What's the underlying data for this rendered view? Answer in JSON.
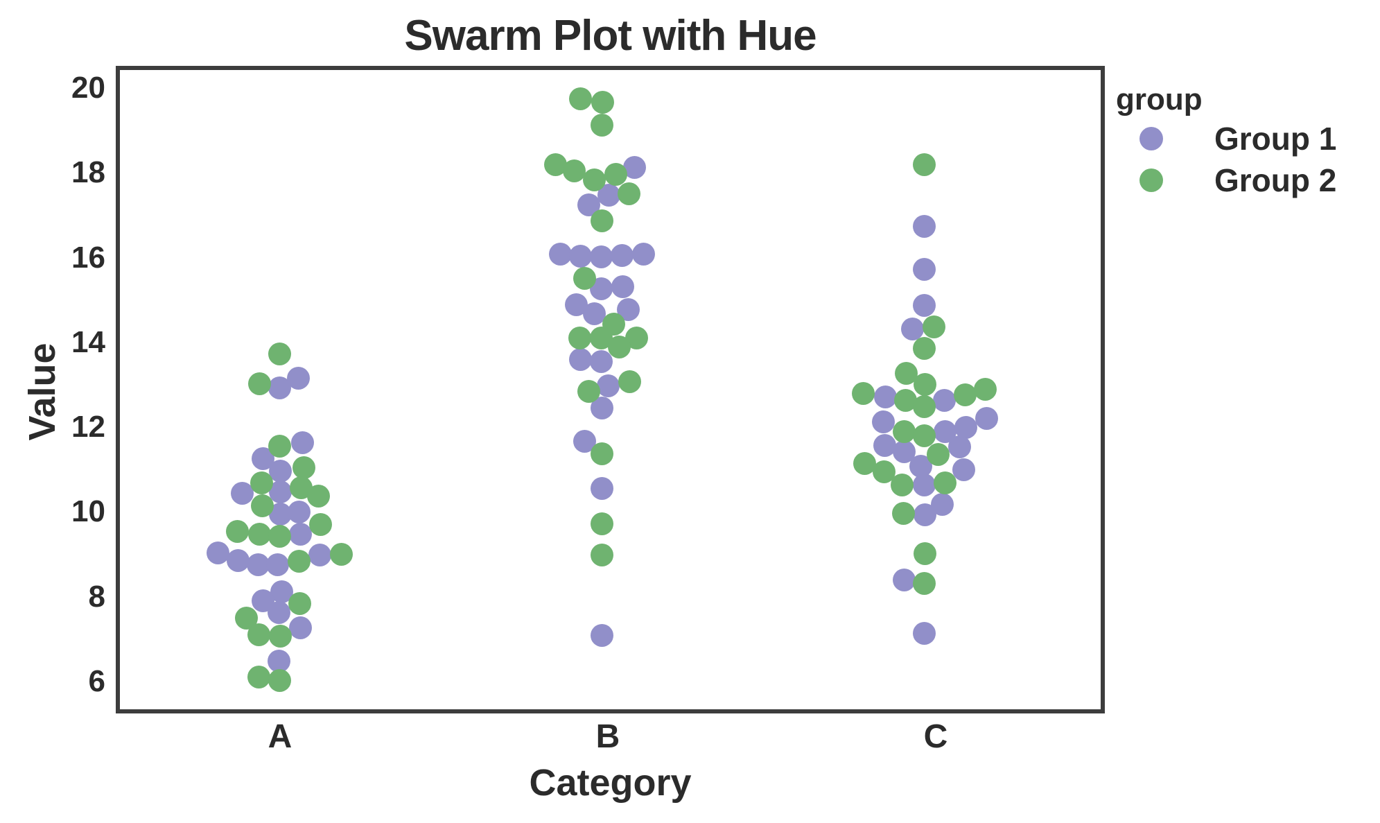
{
  "chart_data": {
    "type": "scatter",
    "variant": "swarmplot",
    "title": "Swarm Plot with Hue",
    "xlabel": "Category",
    "ylabel": "Value",
    "categories": [
      "A",
      "B",
      "C"
    ],
    "y_ticks": [
      6,
      8,
      10,
      12,
      14,
      16,
      18,
      20
    ],
    "ylim": [
      5.3,
      20.5
    ],
    "grid": false,
    "frame_color": "#3d3d3d",
    "text_color": "#2b2b2b",
    "legend": {
      "title": "group",
      "position": "outside-upper-right",
      "entries": [
        {
          "label": "Group 1",
          "color": "#918fc9"
        },
        {
          "label": "Group 2",
          "color": "#6fb370"
        }
      ]
    },
    "point_format": [
      "category",
      "value",
      "swarm_x_offset_px"
    ],
    "series": [
      {
        "name": "Group 1",
        "color": "#918fc9",
        "points": [
          [
            "A",
            12.92,
            -1
          ],
          [
            "A",
            13.15,
            26
          ],
          [
            "A",
            11.63,
            32
          ],
          [
            "A",
            11.26,
            -25
          ],
          [
            "A",
            10.97,
            0
          ],
          [
            "A",
            10.47,
            0
          ],
          [
            "A",
            10.44,
            -55
          ],
          [
            "A",
            9.95,
            0
          ],
          [
            "A",
            10.0,
            27
          ],
          [
            "A",
            9.47,
            29
          ],
          [
            "A",
            9.03,
            -90
          ],
          [
            "A",
            8.86,
            -61
          ],
          [
            "A",
            8.76,
            -32
          ],
          [
            "A",
            8.76,
            -4
          ],
          [
            "A",
            8.99,
            57
          ],
          [
            "A",
            8.12,
            2
          ],
          [
            "A",
            7.91,
            -25
          ],
          [
            "A",
            7.63,
            -2
          ],
          [
            "A",
            7.26,
            29
          ],
          [
            "A",
            6.49,
            -2
          ],
          [
            "B",
            18.13,
            38
          ],
          [
            "B",
            17.47,
            1
          ],
          [
            "B",
            17.25,
            -28
          ],
          [
            "B",
            16.08,
            -69
          ],
          [
            "B",
            16.04,
            -40
          ],
          [
            "B",
            16.02,
            -10
          ],
          [
            "B",
            16.05,
            20
          ],
          [
            "B",
            16.09,
            51
          ],
          [
            "B",
            15.27,
            -10
          ],
          [
            "B",
            15.31,
            21
          ],
          [
            "B",
            14.89,
            -46
          ],
          [
            "B",
            14.67,
            -20
          ],
          [
            "B",
            14.77,
            29
          ],
          [
            "B",
            13.59,
            -40
          ],
          [
            "B",
            13.55,
            -10
          ],
          [
            "B",
            12.97,
            0
          ],
          [
            "B",
            12.46,
            -9
          ],
          [
            "B",
            11.66,
            -34
          ],
          [
            "B",
            10.55,
            -9
          ],
          [
            "B",
            7.08,
            -9
          ],
          [
            "C",
            16.73,
            -17
          ],
          [
            "C",
            15.73,
            -17
          ],
          [
            "C",
            14.87,
            -17
          ],
          [
            "C",
            14.31,
            -34
          ],
          [
            "C",
            12.71,
            -73
          ],
          [
            "C",
            12.63,
            12
          ],
          [
            "C",
            12.13,
            -76
          ],
          [
            "C",
            12.21,
            73
          ],
          [
            "C",
            11.9,
            13
          ],
          [
            "C",
            12.0,
            43
          ],
          [
            "C",
            11.57,
            -74
          ],
          [
            "C",
            11.42,
            -46
          ],
          [
            "C",
            11.53,
            34
          ],
          [
            "C",
            11.08,
            -22
          ],
          [
            "C",
            11.0,
            40
          ],
          [
            "C",
            10.64,
            -17
          ],
          [
            "C",
            10.18,
            9
          ],
          [
            "C",
            9.93,
            -16
          ],
          [
            "C",
            8.39,
            -46
          ],
          [
            "C",
            7.13,
            -17
          ]
        ]
      },
      {
        "name": "Group 2",
        "color": "#6fb370",
        "points": [
          [
            "A",
            13.72,
            -1
          ],
          [
            "A",
            13.03,
            -30
          ],
          [
            "A",
            11.56,
            -1
          ],
          [
            "A",
            11.05,
            34
          ],
          [
            "A",
            10.68,
            -27
          ],
          [
            "A",
            10.57,
            30
          ],
          [
            "A",
            10.38,
            55
          ],
          [
            "A",
            10.14,
            -26
          ],
          [
            "A",
            9.7,
            58
          ],
          [
            "A",
            9.54,
            -62
          ],
          [
            "A",
            9.47,
            -30
          ],
          [
            "A",
            9.43,
            -1
          ],
          [
            "A",
            8.83,
            27
          ],
          [
            "A",
            9.0,
            88
          ],
          [
            "A",
            7.84,
            28
          ],
          [
            "A",
            7.49,
            -49
          ],
          [
            "A",
            7.1,
            -31
          ],
          [
            "A",
            7.07,
            0
          ],
          [
            "A",
            6.11,
            -31
          ],
          [
            "A",
            6.03,
            -1
          ],
          [
            "B",
            19.74,
            -40
          ],
          [
            "B",
            19.66,
            -8
          ],
          [
            "B",
            19.12,
            -9
          ],
          [
            "B",
            18.2,
            -76
          ],
          [
            "B",
            18.05,
            -49
          ],
          [
            "B",
            17.84,
            -20
          ],
          [
            "B",
            17.97,
            11
          ],
          [
            "B",
            17.5,
            30
          ],
          [
            "B",
            16.87,
            -9
          ],
          [
            "B",
            15.51,
            -34
          ],
          [
            "B",
            14.43,
            8
          ],
          [
            "B",
            14.11,
            -41
          ],
          [
            "B",
            14.1,
            -10
          ],
          [
            "B",
            14.11,
            41
          ],
          [
            "B",
            13.89,
            16
          ],
          [
            "B",
            13.08,
            31
          ],
          [
            "B",
            12.85,
            -28
          ],
          [
            "B",
            11.38,
            -9
          ],
          [
            "B",
            9.72,
            -9
          ],
          [
            "B",
            8.99,
            -9
          ],
          [
            "C",
            18.19,
            -17
          ],
          [
            "C",
            14.36,
            -3
          ],
          [
            "C",
            13.86,
            -17
          ],
          [
            "C",
            13.27,
            -43
          ],
          [
            "C",
            13.0,
            -16
          ],
          [
            "C",
            12.79,
            -105
          ],
          [
            "C",
            12.64,
            -44
          ],
          [
            "C",
            12.76,
            42
          ],
          [
            "C",
            12.9,
            71
          ],
          [
            "C",
            12.48,
            -17
          ],
          [
            "C",
            11.9,
            -46
          ],
          [
            "C",
            11.8,
            -17
          ],
          [
            "C",
            11.36,
            3
          ],
          [
            "C",
            11.14,
            -103
          ],
          [
            "C",
            10.94,
            -75
          ],
          [
            "C",
            10.64,
            -49
          ],
          [
            "C",
            10.68,
            13
          ],
          [
            "C",
            9.96,
            -47
          ],
          [
            "C",
            9.02,
            -16
          ],
          [
            "C",
            8.31,
            -17
          ]
        ]
      }
    ]
  }
}
